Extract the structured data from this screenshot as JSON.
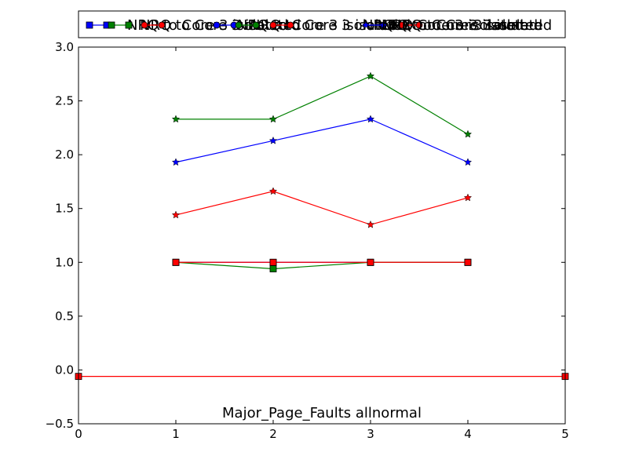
{
  "chart_data": {
    "type": "line",
    "title": "Major_Page_Faults allnormal",
    "xlabel": "",
    "ylabel": "",
    "xlim": [
      0,
      5
    ],
    "ylim": [
      -0.5,
      3.0
    ],
    "xticks": [
      0,
      1,
      2,
      3,
      4,
      5
    ],
    "xtick_labels": [
      "0",
      "1",
      "2",
      "3",
      "4",
      "5"
    ],
    "yticks": [
      -0.5,
      0.0,
      0.5,
      1.0,
      1.5,
      2.0,
      2.5,
      3.0
    ],
    "ytick_labels": [
      "−0.5",
      "0.0",
      "0.5",
      "1.0",
      "1.5",
      "2.0",
      "2.5",
      "3.0"
    ],
    "grid": false,
    "legend_position": "top",
    "legend_text": "NRQ to Core 3 isolated",
    "series": [
      {
        "color": "#0000ff",
        "marker": "square",
        "x": [
          1,
          2,
          3,
          4
        ],
        "y": [
          1.0,
          1.0,
          1.0,
          1.0
        ]
      },
      {
        "color": "#008000",
        "marker": "square",
        "x": [
          1,
          2,
          3,
          4
        ],
        "y": [
          1.0,
          0.94,
          1.0,
          1.0
        ]
      },
      {
        "color": "#ff0000",
        "marker": "square",
        "x": [
          1,
          2,
          3,
          4
        ],
        "y": [
          1.0,
          1.0,
          1.0,
          1.0
        ]
      },
      {
        "color": "#0000ff",
        "marker": "star",
        "x": [
          1,
          2,
          3,
          4
        ],
        "y": [
          1.93,
          2.13,
          2.33,
          1.93
        ]
      },
      {
        "color": "#008000",
        "marker": "star",
        "x": [
          1,
          2,
          3,
          4
        ],
        "y": [
          2.33,
          2.33,
          2.73,
          2.19
        ]
      },
      {
        "color": "#ff0000",
        "marker": "star",
        "x": [
          1,
          2,
          3,
          4
        ],
        "y": [
          1.44,
          1.66,
          1.35,
          1.6
        ]
      },
      {
        "color": "#ff0000",
        "marker": "square",
        "x": [
          0,
          5
        ],
        "y": [
          -0.06,
          -0.06
        ]
      }
    ]
  }
}
